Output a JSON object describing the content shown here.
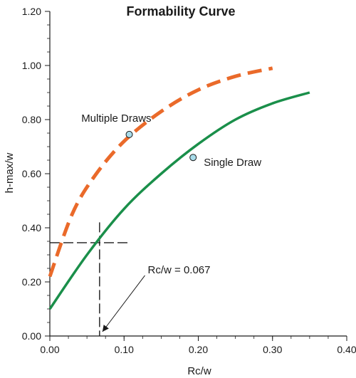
{
  "chart_data": {
    "type": "line",
    "title": "Formability Curve",
    "xlabel": "Rc/w",
    "ylabel": "h-max/w",
    "xlim": [
      0,
      0.4
    ],
    "ylim": [
      0,
      1.2
    ],
    "x_ticks": [
      "0.00",
      "0.10",
      "0.20",
      "0.30",
      "0.40"
    ],
    "y_ticks": [
      "0.00",
      "0.20",
      "0.40",
      "0.60",
      "0.80",
      "1.00",
      "1.20"
    ],
    "series": [
      {
        "key": "multiple",
        "color": "#ea6a2a",
        "style": "dashed",
        "x": [
          0.0,
          0.03,
          0.06,
          0.1,
          0.15,
          0.2,
          0.25,
          0.3
        ],
        "y": [
          0.22,
          0.45,
          0.59,
          0.72,
          0.83,
          0.91,
          0.96,
          0.99
        ]
      },
      {
        "key": "single",
        "color": "#1a8f4a",
        "style": "solid",
        "x": [
          0.0,
          0.05,
          0.1,
          0.15,
          0.2,
          0.25,
          0.3,
          0.35
        ],
        "y": [
          0.1,
          0.3,
          0.47,
          0.6,
          0.71,
          0.8,
          0.86,
          0.9
        ]
      }
    ],
    "markers": [
      {
        "label": "Multiple Draws",
        "x": 0.107,
        "y": 0.745
      },
      {
        "label": "Single Draw",
        "x": 0.193,
        "y": 0.66
      }
    ],
    "annotation": {
      "text": "Rc/w = 0.067",
      "x": 0.067,
      "y": 0.345,
      "text_x": 0.13,
      "text_y": 0.245
    },
    "marker_color": "#a8dcea",
    "grid": false,
    "legend": "none"
  }
}
